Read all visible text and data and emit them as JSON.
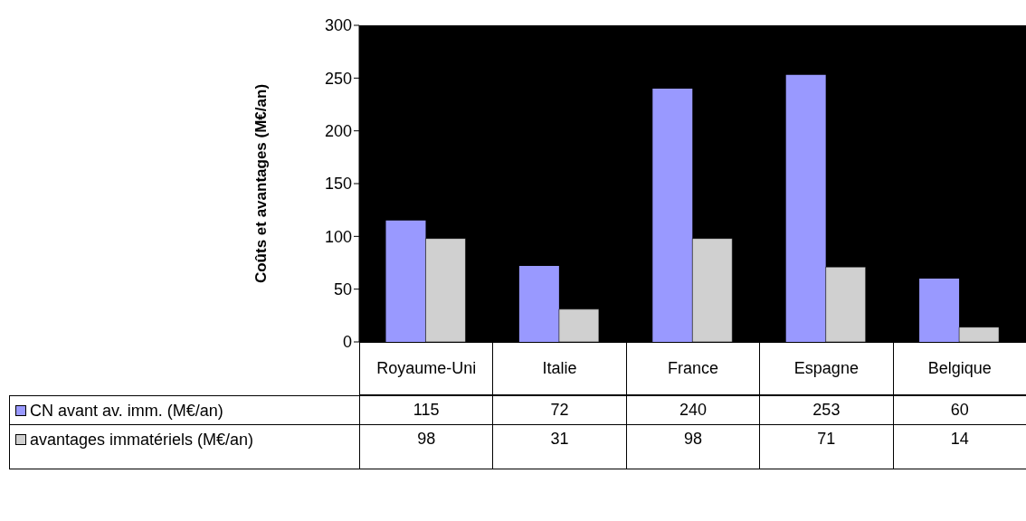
{
  "chart_data": {
    "type": "bar",
    "ylabel": "Coûts et avantages (M€/an)",
    "categories": [
      "Royaume-Uni",
      "Italie",
      "France",
      "Espagne",
      "Belgique"
    ],
    "series": [
      {
        "name": "CN avant av. imm. (M€/an)",
        "color": "#9999ff",
        "values": [
          115,
          72,
          240,
          253,
          60
        ]
      },
      {
        "name": "avantages immatériels (M€/an)",
        "color": "#d0d0d0",
        "values": [
          98,
          31,
          98,
          71,
          14
        ]
      }
    ],
    "ylim": [
      0,
      300
    ],
    "yticks": [
      0,
      50,
      100,
      150,
      200,
      250,
      300
    ],
    "grid": false,
    "legend": "bottom",
    "data_labels": true
  }
}
